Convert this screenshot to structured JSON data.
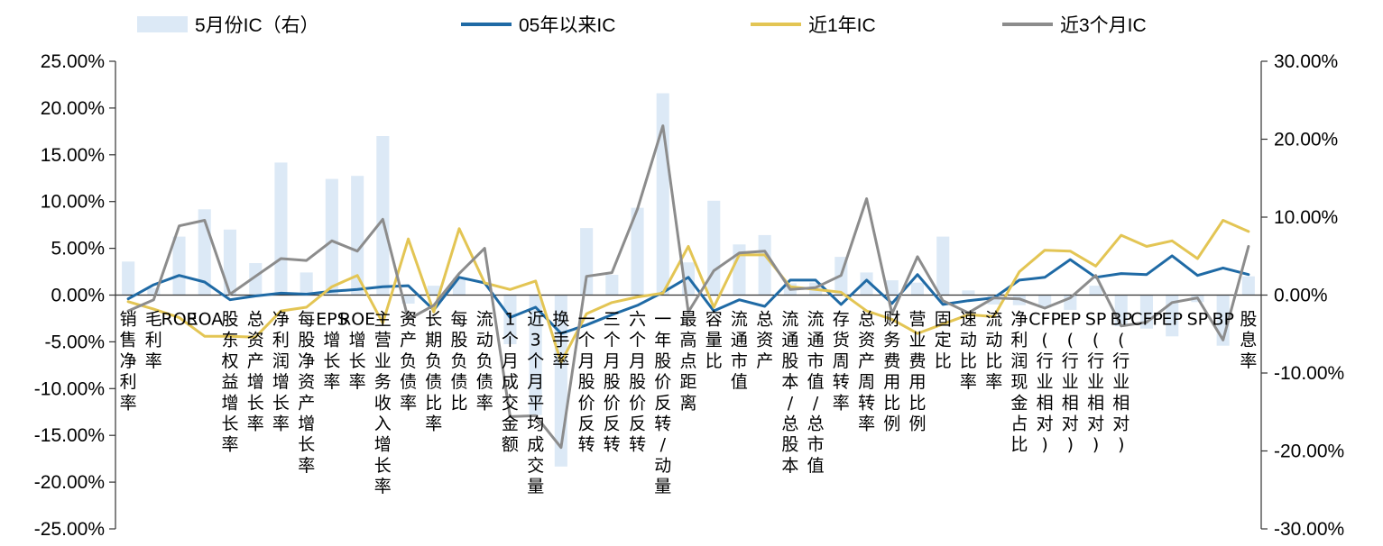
{
  "chart_data": {
    "type": "bar",
    "categories": [
      "销售净利率",
      "毛利率",
      "ROE",
      "ROA",
      "股东权益增长率",
      "总资产增长率",
      "净利润增长率",
      "每股净资产增长率",
      "EPS增长率",
      "ROE增长率",
      "主营业务收入增长率",
      "资产负债率",
      "长期负债比率",
      "每股负债比",
      "流动负债率",
      "1个月成交金额",
      "近3个月平均成交量",
      "换手率",
      "一个月股价反转",
      "三个月股价反转",
      "六个月股价反转",
      "一年股价反转/动量",
      "最高点距离",
      "容量比",
      "流通市值",
      "总资产",
      "流通股本/总股本",
      "流通市值/总市值",
      "存货周转率",
      "总资产周转率",
      "财务费用比例",
      "营业费用比例",
      "固定比",
      "速动比率",
      "流动比率",
      "净利润现金占比",
      "CFP(行业相对)",
      "EP(行业相对)",
      "SP(行业相对)",
      "BP(行业相对)",
      "CFP",
      "EP",
      "SP",
      "BP",
      "股息率"
    ],
    "series": [
      {
        "name": "5月份IC（右）",
        "type": "bar",
        "axis": "right",
        "color": "#dce9f6",
        "values": [
          4.3,
          0.9,
          7.5,
          11.0,
          8.4,
          4.1,
          17.0,
          2.9,
          14.9,
          15.3,
          20.4,
          -1.1,
          1.2,
          2.2,
          0.0,
          -6.3,
          -15.4,
          -22.0,
          8.6,
          2.6,
          11.2,
          25.9,
          4.2,
          12.1,
          6.5,
          7.7,
          1.5,
          1.6,
          4.9,
          2.9,
          1.9,
          1.6,
          7.5,
          0.6,
          -1.2,
          -1.3,
          -1.6,
          -1.9,
          1.2,
          -4.0,
          -4.3,
          -5.3,
          -0.9,
          -6.5,
          2.4
        ]
      },
      {
        "name": "05年以来IC",
        "type": "line",
        "axis": "left",
        "color": "#1f6aa5",
        "values": [
          -0.4,
          1.1,
          2.1,
          1.4,
          -0.5,
          -0.1,
          0.2,
          0.1,
          0.4,
          0.6,
          0.9,
          1.0,
          -1.6,
          1.9,
          1.3,
          -2.4,
          -1.3,
          -4.1,
          -3.2,
          -2.1,
          -1.1,
          0.3,
          1.9,
          -1.7,
          -0.5,
          -1.2,
          1.6,
          1.6,
          -1.0,
          1.6,
          -0.9,
          2.2,
          -1.0,
          -0.6,
          -0.3,
          1.6,
          1.9,
          3.8,
          1.9,
          2.3,
          2.2,
          4.2,
          2.1,
          2.9,
          2.2
        ]
      },
      {
        "name": "近1年IC",
        "type": "line",
        "axis": "left",
        "color": "#e3c554",
        "values": [
          -0.7,
          -1.5,
          -2.4,
          -4.4,
          -4.4,
          -4.5,
          -1.7,
          -1.3,
          0.9,
          2.1,
          -3.0,
          6.0,
          -1.8,
          7.1,
          1.3,
          0.6,
          1.5,
          -7.2,
          -2.0,
          -0.8,
          -0.2,
          0.2,
          5.2,
          -1.3,
          4.3,
          4.3,
          0.9,
          0.6,
          0.3,
          -1.7,
          -2.6,
          -4.1,
          -3.1,
          -2.1,
          -2.3,
          2.5,
          4.8,
          4.7,
          3.1,
          6.4,
          5.2,
          5.8,
          3.9,
          8.0,
          6.8
        ]
      },
      {
        "name": "近3个月IC",
        "type": "line",
        "axis": "left",
        "color": "#8c8c8c",
        "values": [
          -1.7,
          -0.5,
          7.4,
          8.0,
          0.1,
          2.0,
          3.9,
          3.7,
          5.8,
          4.7,
          8.1,
          -2.6,
          -1.1,
          2.3,
          5.0,
          -13.0,
          -12.9,
          -16.3,
          2.0,
          2.4,
          9.2,
          18.1,
          -1.8,
          2.6,
          4.5,
          4.7,
          0.6,
          0.8,
          2.1,
          10.3,
          -2.0,
          4.1,
          -0.6,
          -1.9,
          -0.3,
          -0.4,
          -1.4,
          -0.3,
          2.1,
          -3.3,
          -2.9,
          -0.8,
          -0.3,
          -4.8,
          5.2
        ]
      }
    ],
    "ylim": [
      -25,
      25
    ],
    "y2lim": [
      -30,
      30
    ],
    "yticks": [
      "25.00%",
      "20.00%",
      "15.00%",
      "10.00%",
      "5.00%",
      "0.00%",
      "-5.00%",
      "-10.00%",
      "-15.00%",
      "-20.00%",
      "-25.00%"
    ],
    "y2ticks": [
      "30.00%",
      "20.00%",
      "10.00%",
      "0.00%",
      "-10.00%",
      "-20.00%",
      "-30.00%"
    ],
    "legend_position": "top",
    "grid": false
  }
}
